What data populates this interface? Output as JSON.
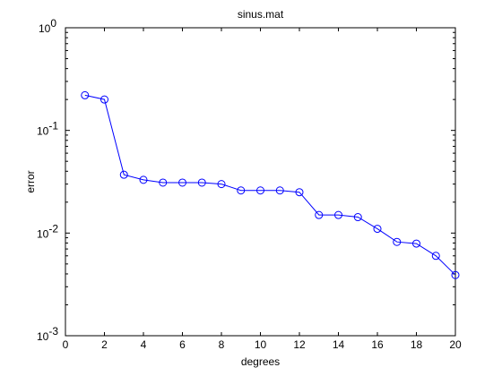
{
  "chart_data": {
    "type": "line",
    "title": "sinus.mat",
    "xlabel": "degrees",
    "ylabel": "error",
    "xlim": [
      0,
      20
    ],
    "ylim": [
      0.001,
      1
    ],
    "yscale": "log",
    "grid": false,
    "x_ticks": [
      "0",
      "2",
      "4",
      "6",
      "8",
      "10",
      "12",
      "14",
      "16",
      "18",
      "20"
    ],
    "y_ticks": [
      {
        "base": "10",
        "exp": "0"
      },
      {
        "base": "10",
        "exp": "-1"
      },
      {
        "base": "10",
        "exp": "-2"
      },
      {
        "base": "10",
        "exp": "-3"
      }
    ],
    "marker": "circle",
    "line_color": "#0000ff",
    "series": [
      {
        "x": [
          1,
          2,
          3,
          4,
          5,
          6,
          7,
          8,
          9,
          10,
          11,
          12,
          13,
          14,
          15,
          16,
          17,
          18,
          19,
          20
        ],
        "values": [
          0.22,
          0.2,
          0.037,
          0.033,
          0.031,
          0.031,
          0.031,
          0.03,
          0.026,
          0.026,
          0.026,
          0.025,
          0.015,
          0.015,
          0.0143,
          0.011,
          0.0082,
          0.0079,
          0.006,
          0.0039
        ]
      }
    ]
  }
}
